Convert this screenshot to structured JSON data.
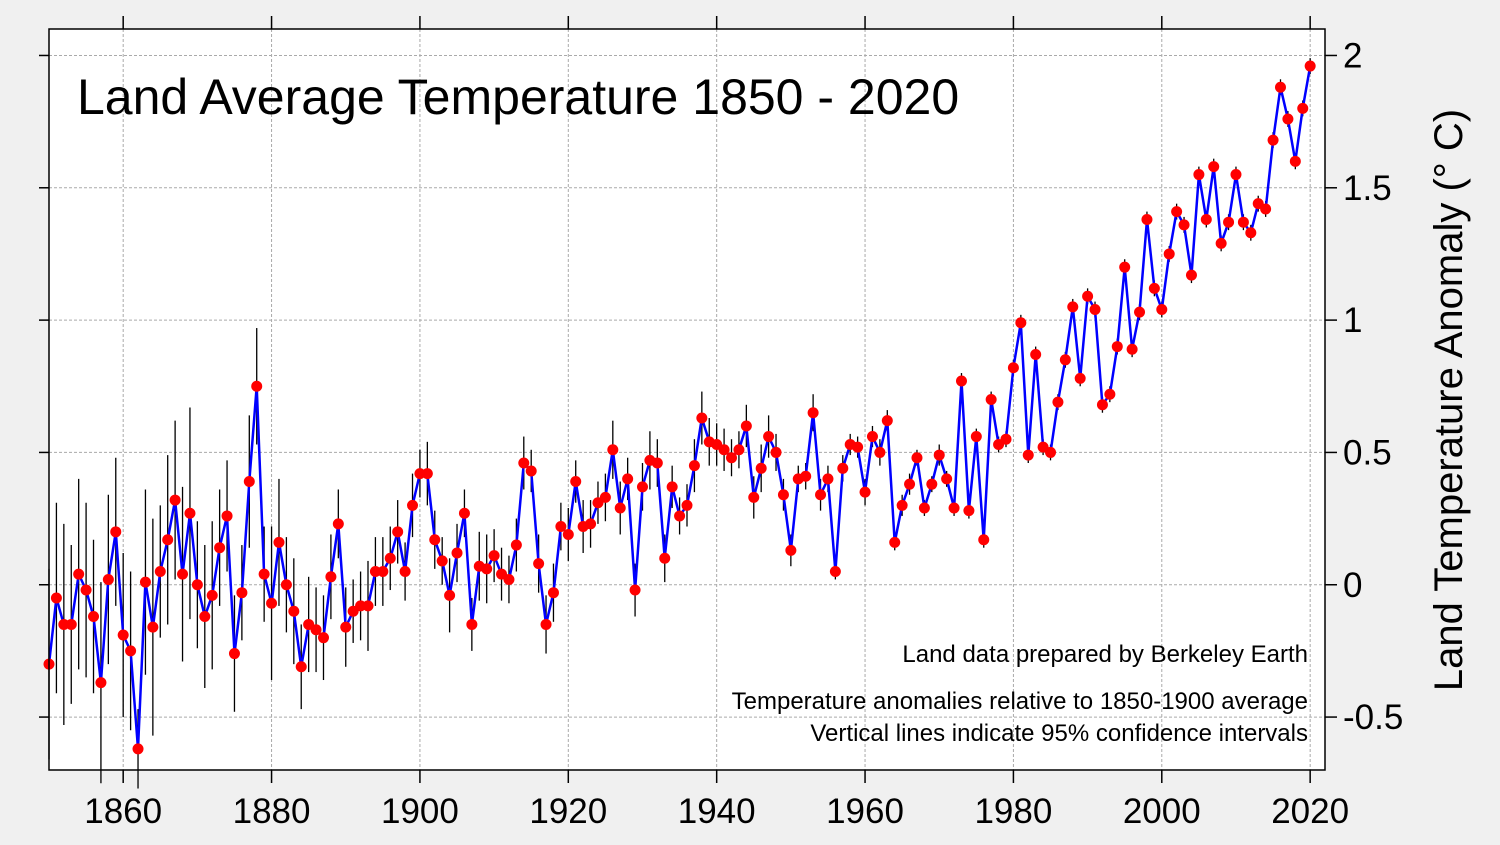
{
  "chart_data": {
    "type": "line",
    "title": "Land Average Temperature 1850 - 2020",
    "xlabel": "",
    "ylabel": "Land Temperature Anomaly (° C)",
    "xlim": [
      1850,
      2022
    ],
    "ylim": [
      -0.7,
      2.1
    ],
    "x_ticks": [
      1860,
      1880,
      1900,
      1920,
      1940,
      1960,
      1980,
      2000,
      2020
    ],
    "y_ticks": [
      -0.5,
      0,
      0.5,
      1,
      1.5,
      2
    ],
    "y_tick_labels": [
      "-0.5",
      "0",
      "0.5",
      "1",
      "1.5",
      "2"
    ],
    "grid": true,
    "y_axis_side": "right",
    "annotations": [
      "Land data prepared by Berkeley Earth",
      "Temperature anomalies relative to 1850-1900 average",
      "Vertical lines indicate 95% confidence intervals"
    ],
    "colors": {
      "line": "#0000ff",
      "marker": "#ff0000",
      "error_bar": "#000000"
    },
    "x_start": 1850,
    "values": [
      -0.3,
      -0.05,
      -0.15,
      -0.15,
      0.04,
      -0.02,
      -0.12,
      -0.37,
      0.02,
      0.2,
      -0.19,
      -0.25,
      -0.62,
      0.01,
      -0.16,
      0.05,
      0.17,
      0.32,
      0.04,
      0.27,
      0.0,
      -0.12,
      -0.04,
      0.14,
      0.26,
      -0.26,
      -0.03,
      0.39,
      0.75,
      0.04,
      -0.07,
      0.16,
      0.0,
      -0.1,
      -0.31,
      -0.15,
      -0.17,
      -0.2,
      0.03,
      0.23,
      -0.16,
      -0.1,
      -0.08,
      -0.08,
      0.05,
      0.05,
      0.1,
      0.2,
      0.05,
      0.3,
      0.42,
      0.42,
      0.17,
      0.09,
      -0.04,
      0.12,
      0.27,
      -0.15,
      0.07,
      0.06,
      0.11,
      0.04,
      0.02,
      0.15,
      0.46,
      0.43,
      0.08,
      -0.15,
      -0.03,
      0.22,
      0.19,
      0.39,
      0.22,
      0.23,
      0.31,
      0.33,
      0.51,
      0.29,
      0.4,
      -0.02,
      0.37,
      0.47,
      0.46,
      0.1,
      0.37,
      0.26,
      0.3,
      0.45,
      0.63,
      0.54,
      0.53,
      0.51,
      0.48,
      0.51,
      0.6,
      0.33,
      0.44,
      0.56,
      0.5,
      0.34,
      0.13,
      0.4,
      0.41,
      0.65,
      0.34,
      0.4,
      0.05,
      0.44,
      0.53,
      0.52,
      0.35,
      0.56,
      0.5,
      0.62,
      0.16,
      0.3,
      0.38,
      0.48,
      0.29,
      0.38,
      0.49,
      0.4,
      0.29,
      0.77,
      0.28,
      0.56,
      0.17,
      0.7,
      0.53,
      0.55,
      0.82,
      0.99,
      0.49,
      0.87,
      0.52,
      0.5,
      0.69,
      0.85,
      1.05,
      0.78,
      1.09,
      1.04,
      0.68,
      0.72,
      0.9,
      1.2,
      0.89,
      1.03,
      1.38,
      1.12,
      1.04,
      1.25,
      1.41,
      1.36,
      1.17,
      1.55,
      1.38,
      1.58,
      1.29,
      1.37,
      1.55,
      1.37,
      1.33,
      1.44,
      1.42,
      1.68,
      1.88,
      1.76,
      1.6,
      1.8,
      1.96
    ],
    "ci95_half_width": [
      0.36,
      0.36,
      0.38,
      0.3,
      0.36,
      0.33,
      0.29,
      0.38,
      0.32,
      0.28,
      0.31,
      0.3,
      0.15,
      0.35,
      0.41,
      0.25,
      0.32,
      0.3,
      0.33,
      0.4,
      0.24,
      0.27,
      0.28,
      0.22,
      0.21,
      0.22,
      0.18,
      0.25,
      0.22,
      0.18,
      0.29,
      0.24,
      0.18,
      0.2,
      0.16,
      0.18,
      0.16,
      0.16,
      0.16,
      0.13,
      0.15,
      0.12,
      0.13,
      0.17,
      0.13,
      0.13,
      0.12,
      0.12,
      0.11,
      0.12,
      0.09,
      0.12,
      0.11,
      0.09,
      0.14,
      0.11,
      0.09,
      0.1,
      0.13,
      0.13,
      0.1,
      0.1,
      0.09,
      0.1,
      0.1,
      0.08,
      0.11,
      0.11,
      0.11,
      0.09,
      0.1,
      0.08,
      0.1,
      0.09,
      0.08,
      0.09,
      0.11,
      0.1,
      0.08,
      0.1,
      0.09,
      0.11,
      0.09,
      0.09,
      0.08,
      0.07,
      0.08,
      0.1,
      0.1,
      0.09,
      0.08,
      0.08,
      0.07,
      0.07,
      0.08,
      0.08,
      0.09,
      0.08,
      0.07,
      0.06,
      0.06,
      0.05,
      0.05,
      0.07,
      0.06,
      0.05,
      0.03,
      0.05,
      0.04,
      0.04,
      0.05,
      0.04,
      0.05,
      0.04,
      0.03,
      0.04,
      0.04,
      0.03,
      0.03,
      0.03,
      0.04,
      0.03,
      0.03,
      0.03,
      0.03,
      0.03,
      0.03,
      0.03,
      0.03,
      0.03,
      0.03,
      0.03,
      0.03,
      0.03,
      0.03,
      0.03,
      0.03,
      0.03,
      0.03,
      0.03,
      0.03,
      0.03,
      0.03,
      0.03,
      0.03,
      0.03,
      0.03,
      0.03,
      0.03,
      0.03,
      0.03,
      0.03,
      0.03,
      0.03,
      0.03,
      0.03,
      0.03,
      0.03,
      0.03,
      0.03,
      0.03,
      0.03,
      0.03,
      0.03,
      0.03,
      0.03,
      0.03,
      0.03,
      0.03,
      0.03,
      0.03
    ]
  }
}
